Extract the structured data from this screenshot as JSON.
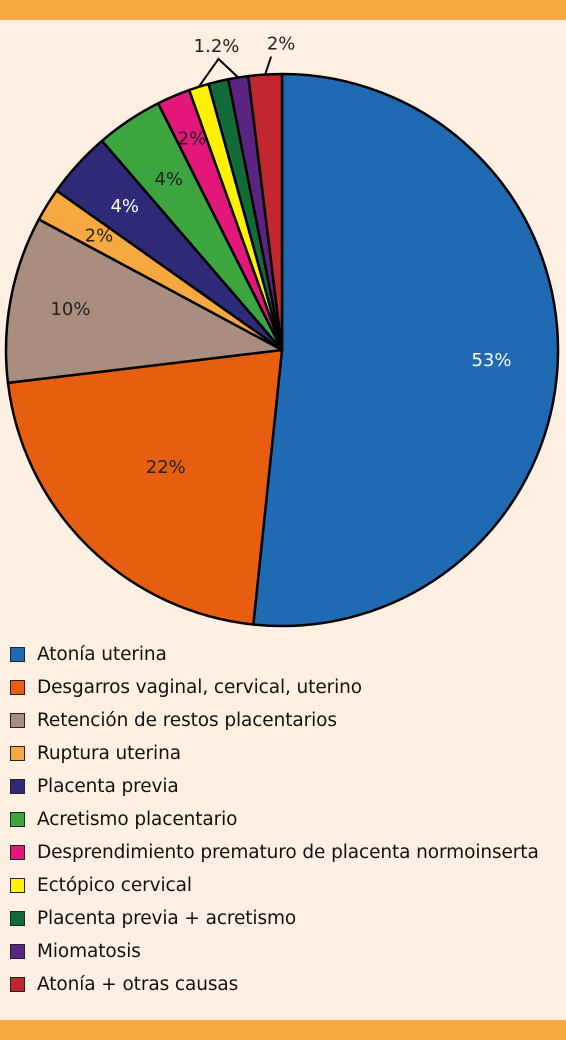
{
  "chart_data": {
    "type": "pie",
    "title": "",
    "slices": [
      {
        "label": "Atonía uterina",
        "value": 53,
        "display": "53%",
        "color": "#2069b3"
      },
      {
        "label": "Desgarros vaginal, cervical, uterino",
        "value": 22,
        "display": "22%",
        "color": "#e85e10"
      },
      {
        "label": "Retención de restos placentarios",
        "value": 10,
        "display": "10%",
        "color": "#a98d7e"
      },
      {
        "label": "Ruptura uterina",
        "value": 2,
        "display": "2%",
        "color": "#f7a941"
      },
      {
        "label": "Placenta previa",
        "value": 4,
        "display": "4%",
        "color": "#2d2a77"
      },
      {
        "label": "Acretismo placentario",
        "value": 4,
        "display": "4%",
        "color": "#3da53f"
      },
      {
        "label": "Desprendimiento prematuro de placenta normoinserta",
        "value": 2,
        "display": "2%",
        "color": "#e3177a"
      },
      {
        "label": "Ectópico cervical",
        "value": 1.2,
        "display": "1.2%",
        "color": "#fff200"
      },
      {
        "label": "Placenta previa + acretismo",
        "value": 1.2,
        "display": "",
        "color": "#136b3a"
      },
      {
        "label": "Miomatosis",
        "value": 1.2,
        "display": "",
        "color": "#5b2483"
      },
      {
        "label": "Atonía + otras causas",
        "value": 2,
        "display": "2%",
        "color": "#c1272d"
      }
    ],
    "legend_position": "bottom"
  }
}
